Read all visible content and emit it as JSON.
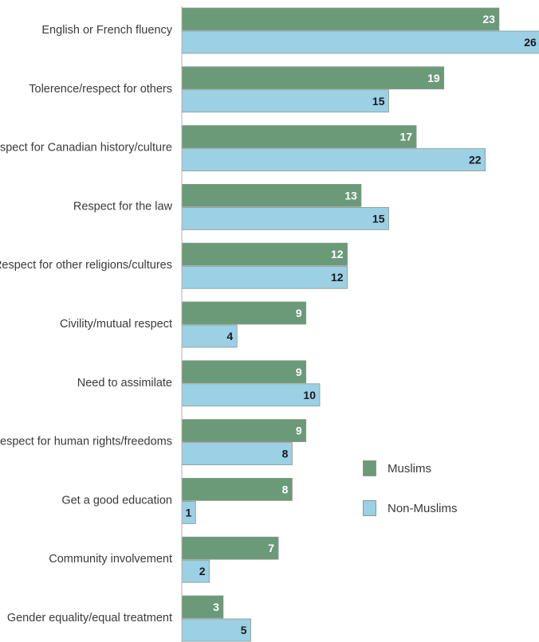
{
  "chart_data": {
    "type": "bar",
    "orientation": "horizontal",
    "categories": [
      "English or French fluency",
      "Tolerence/respect for others",
      "Respect for Canadian history/culture",
      "Respect for the law",
      "Respect for other religions/cultures",
      "Civility/mutual respect",
      "Need to assimilate",
      "Respect for human rights/freedoms",
      "Get a good education",
      "Community involvement",
      "Gender equality/equal treatment"
    ],
    "series": [
      {
        "name": "Muslims",
        "color": "#6a9a78",
        "label_color": "#ffffff",
        "values": [
          23,
          19,
          17,
          13,
          12,
          9,
          9,
          9,
          8,
          7,
          3
        ]
      },
      {
        "name": "Non-Muslims",
        "color": "#9bd0e5",
        "label_color": "#1a1a1a",
        "values": [
          26,
          15,
          22,
          15,
          12,
          4,
          10,
          8,
          1,
          2,
          5
        ]
      }
    ],
    "xlim": [
      0,
      26
    ],
    "grid": false,
    "legend_position": "lower-right"
  }
}
